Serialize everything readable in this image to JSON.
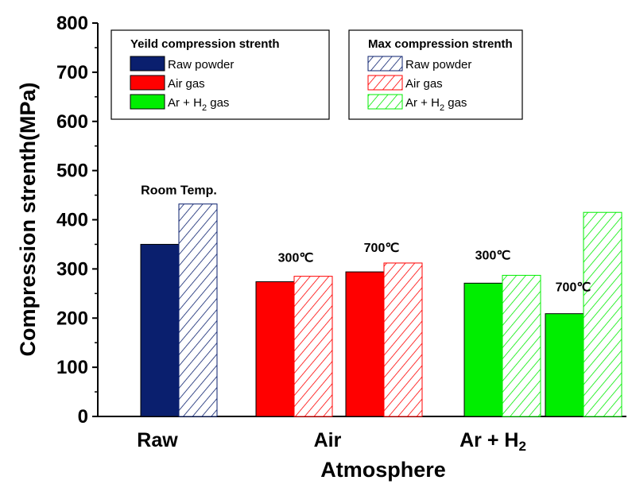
{
  "chart_data": {
    "type": "bar",
    "ylabel": "Compression strenth(MPa)",
    "xlabel": "Atmosphere",
    "ylim": [
      0,
      800
    ],
    "yticks": [
      "0",
      "100",
      "200",
      "300",
      "400",
      "500",
      "600",
      "700",
      "800"
    ],
    "categories": [
      {
        "label": "Raw",
        "sub": ""
      },
      {
        "label": "Air",
        "sub": ""
      },
      {
        "label": "Ar + H",
        "sub": "2"
      }
    ],
    "bar_groups": [
      {
        "category": "Raw",
        "annotation": "Room Temp.",
        "material": "Raw powder",
        "yield": 350,
        "max": 432
      },
      {
        "category": "Air",
        "annotation": "300℃",
        "material": "Air gas",
        "yield": 274,
        "max": 285
      },
      {
        "category": "Air",
        "annotation": "700℃",
        "material": "Air gas",
        "yield": 294,
        "max": 312
      },
      {
        "category": "Ar + H2",
        "annotation": "300℃",
        "material": "Ar + H2 gas",
        "yield": 271,
        "max": 287
      },
      {
        "category": "Ar + H2",
        "annotation": "700℃",
        "material": "Ar + H2 gas",
        "yield": 209,
        "max": 415
      }
    ],
    "legends": [
      {
        "title": "Yeild compression strenth",
        "style": "solid",
        "entries": [
          {
            "label": "Raw powder",
            "sub": "",
            "suffix": "",
            "color": "#0a1f6e"
          },
          {
            "label": "Air gas",
            "sub": "",
            "suffix": "",
            "color": "#ff0000"
          },
          {
            "label": "Ar + H",
            "sub": "2",
            "suffix": " gas",
            "color": "#00ee00"
          }
        ]
      },
      {
        "title": "Max compression strenth",
        "style": "hatched",
        "entries": [
          {
            "label": "Raw powder",
            "sub": "",
            "suffix": "",
            "color": "#0a1f6e"
          },
          {
            "label": "Air gas",
            "sub": "",
            "suffix": "",
            "color": "#ff0000"
          },
          {
            "label": "Ar + H",
            "sub": "2",
            "suffix": " gas",
            "color": "#00ee00"
          }
        ]
      }
    ],
    "colors": {
      "Raw powder": "#0a1f6e",
      "Air gas": "#ff0000",
      "Ar + H2 gas": "#00ee00"
    }
  }
}
